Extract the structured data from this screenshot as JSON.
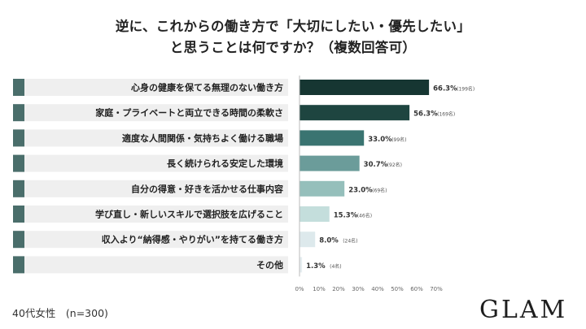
{
  "title_line1": "逆に、これからの働き方で「大切にしたい・優先したい」",
  "title_line2": "と思うことは何ですか？（複数回答可）",
  "footer_note": "40代女性　(n=300)",
  "logo_text": "GLAM",
  "colors": {
    "row_band": "#efefef",
    "row_marker": "#4a6e6b",
    "label_text": "#222222",
    "axis_line": "#bbbbbb",
    "bars": [
      "#163632",
      "#1e4540",
      "#3a7471",
      "#6b9c9a",
      "#95bfbb",
      "#c4dedc",
      "#dde9ec",
      "#e6eef0"
    ]
  },
  "chart_data": {
    "type": "bar",
    "orientation": "horizontal",
    "categories": [
      "心身の健康を保てる無理のない働き方",
      "家庭・プライベートと両立できる時間の柔軟さ",
      "適度な人間関係・気持ちよく働ける職場",
      "長く続けられる安定した環境",
      "自分の得意・好きを活かせる仕事内容",
      "学び直し・新しいスキルで選択肢を広げること",
      "収入より“納得感・やりがい”を持てる働き方",
      "その他"
    ],
    "values": [
      66.3,
      56.3,
      33.0,
      30.7,
      23.0,
      15.3,
      8.0,
      1.3
    ],
    "value_labels": [
      "66.3%",
      "56.3%",
      "33.0%",
      "30.7%",
      "23.0%",
      "15.3%",
      "8.0%",
      "1.3%"
    ],
    "count_labels": [
      "(199名)",
      "(169名)",
      "(99名)",
      "(92名)",
      "(69名)",
      "(46名)",
      "(24名)",
      "(4名)"
    ],
    "xlim": [
      0,
      70
    ],
    "xticks": [
      "0%",
      "10%",
      "20%",
      "30%",
      "40%",
      "50%",
      "60%",
      "70%"
    ],
    "grid": false,
    "legend": "none"
  }
}
